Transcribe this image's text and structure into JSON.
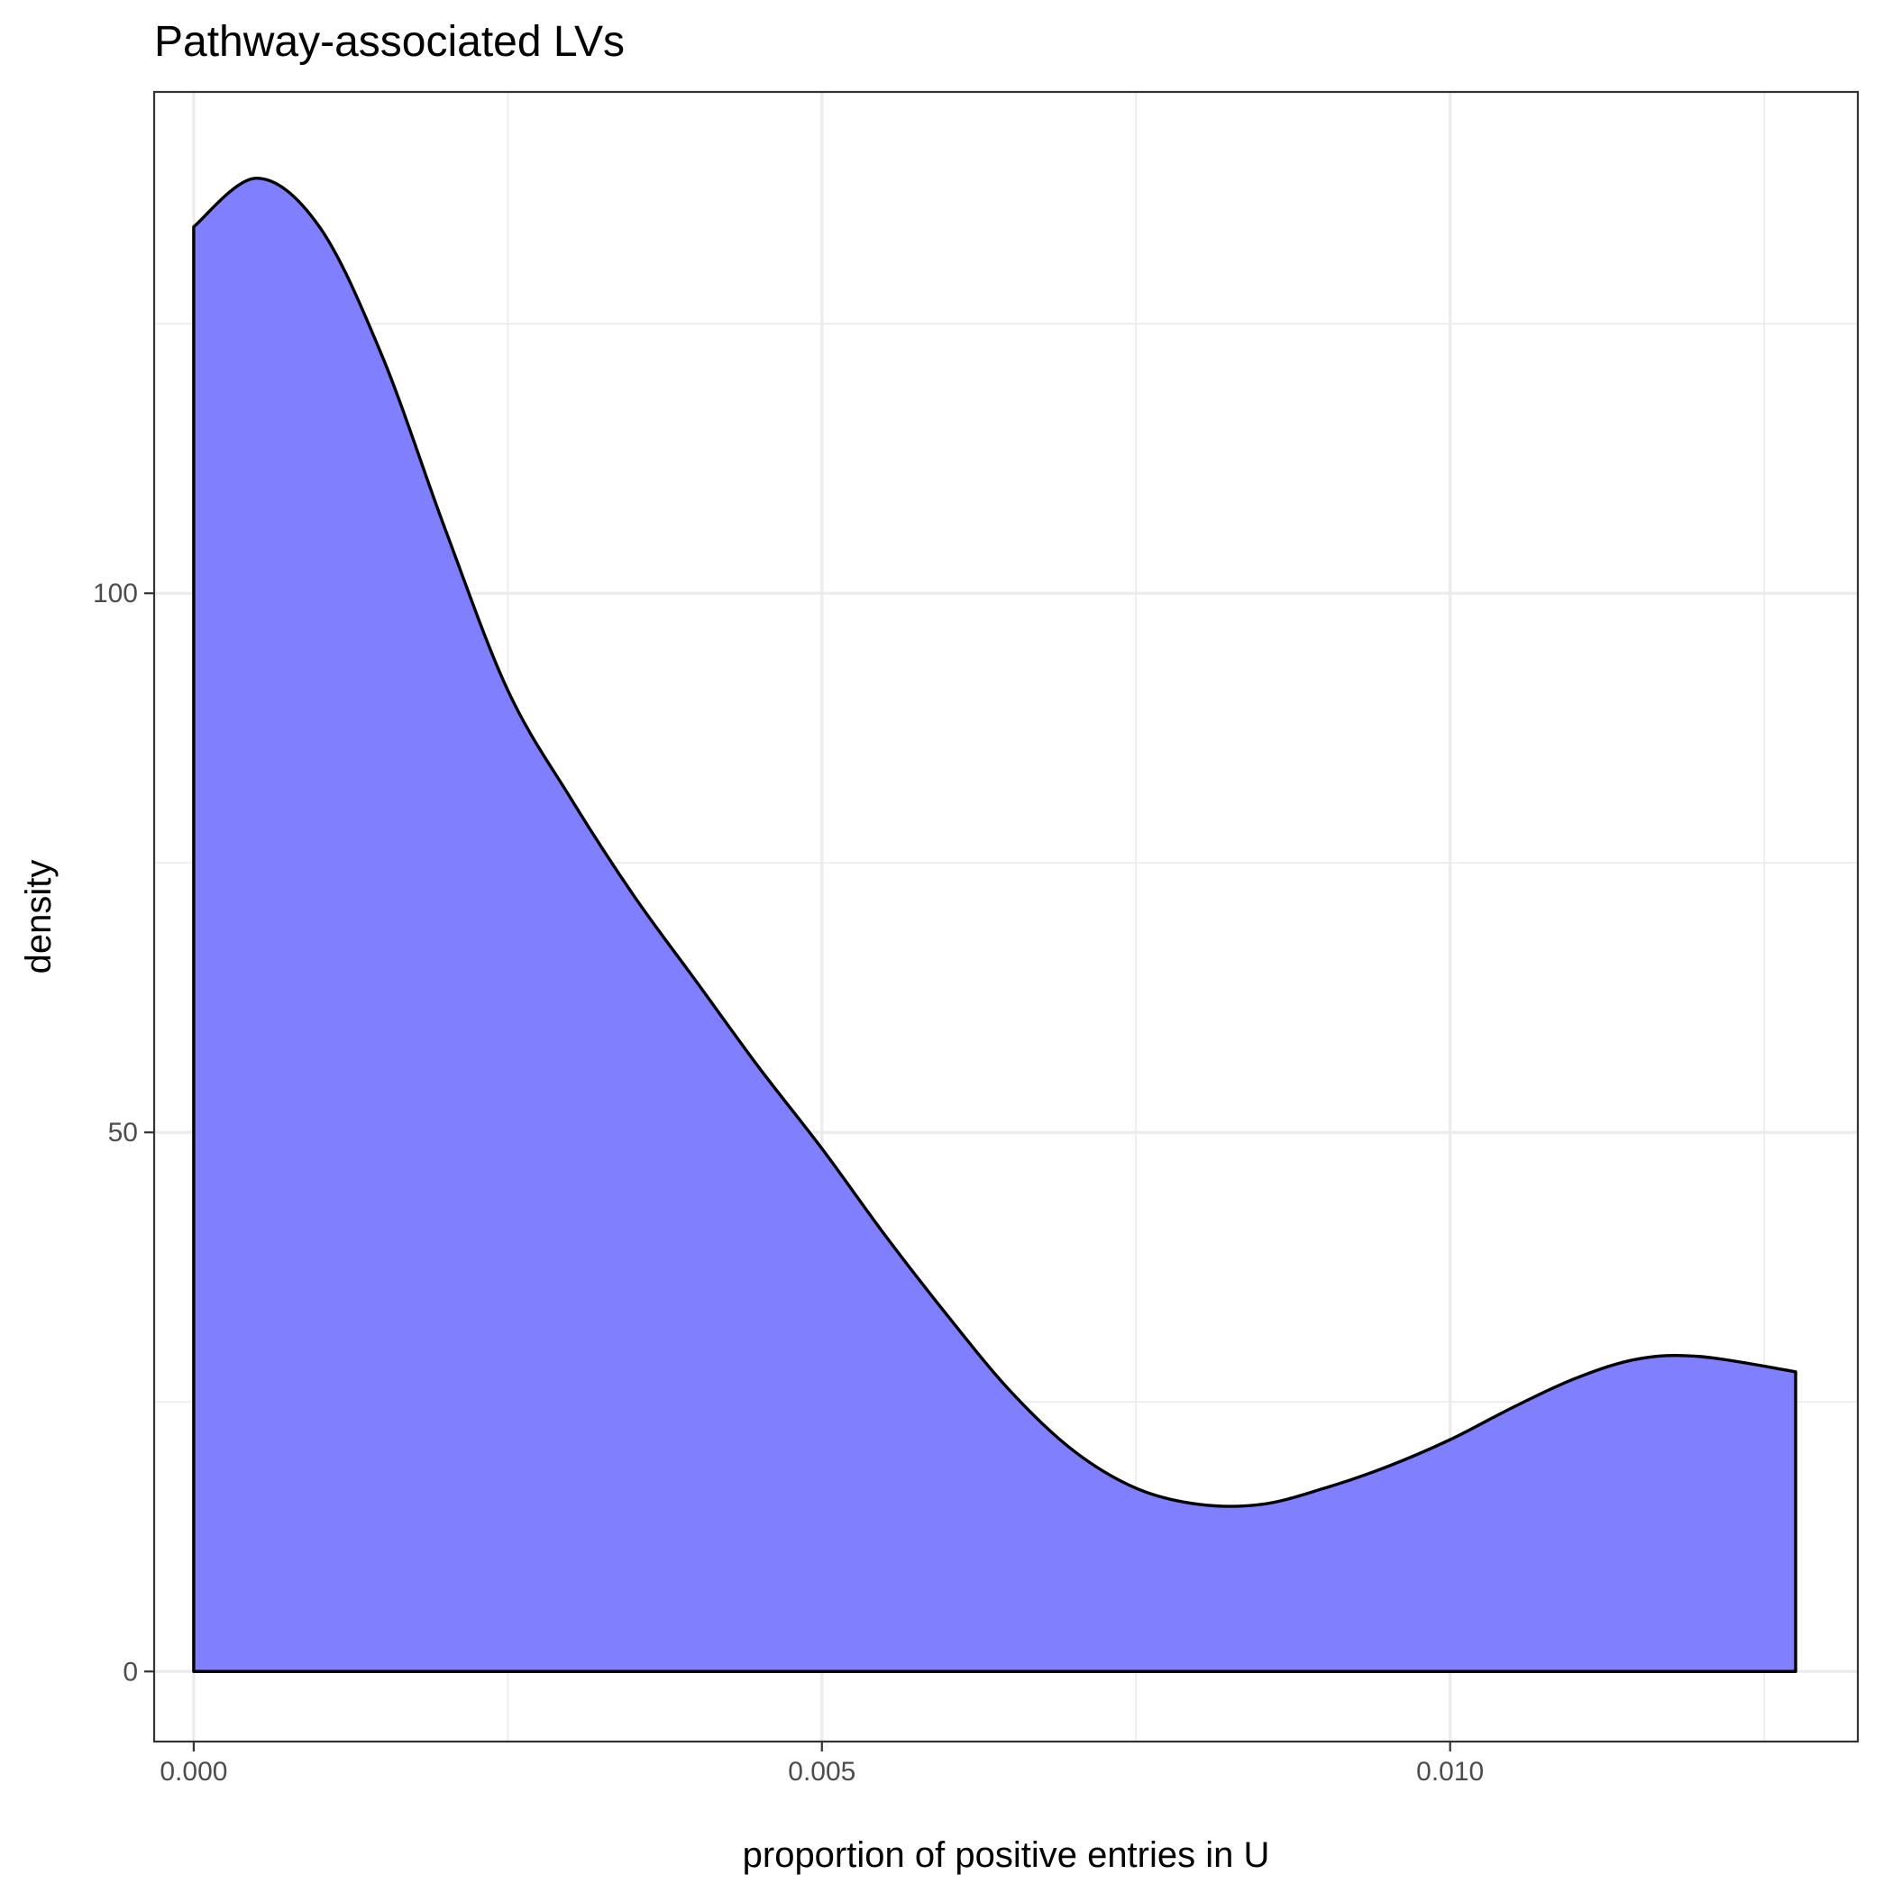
{
  "chart_data": {
    "type": "area",
    "title": "Pathway-associated LVs",
    "xlabel": "proportion of positive entries in U",
    "ylabel": "density",
    "xlim": [
      -0.000315,
      0.013245
    ],
    "ylim": [
      -6.5,
      146.5
    ],
    "x_ticks": [
      0.0,
      0.005,
      0.01
    ],
    "x_tick_labels": [
      "0.000",
      "0.005",
      "0.010"
    ],
    "y_ticks": [
      0,
      50,
      100
    ],
    "y_tick_labels": [
      "0",
      "50",
      "100"
    ],
    "grid": true,
    "legend": "none",
    "fill_color": "#8080ff",
    "line_color": "#000000",
    "series": [
      {
        "x": [
          0.0,
          0.0005,
          0.001,
          0.0015,
          0.002,
          0.0025,
          0.003,
          0.0035,
          0.004,
          0.0045,
          0.005,
          0.0055,
          0.006,
          0.0065,
          0.007,
          0.0075,
          0.008,
          0.0085,
          0.009,
          0.0095,
          0.01,
          0.0105,
          0.011,
          0.0115,
          0.012,
          0.01275
        ],
        "y": [
          134,
          138.5,
          134,
          122,
          106,
          91,
          81,
          72,
          64,
          56,
          48.5,
          40.5,
          33,
          26,
          20.5,
          17,
          15.5,
          15.5,
          17,
          19,
          21.5,
          24.5,
          27.2,
          29,
          29.2,
          27.8
        ]
      }
    ]
  }
}
